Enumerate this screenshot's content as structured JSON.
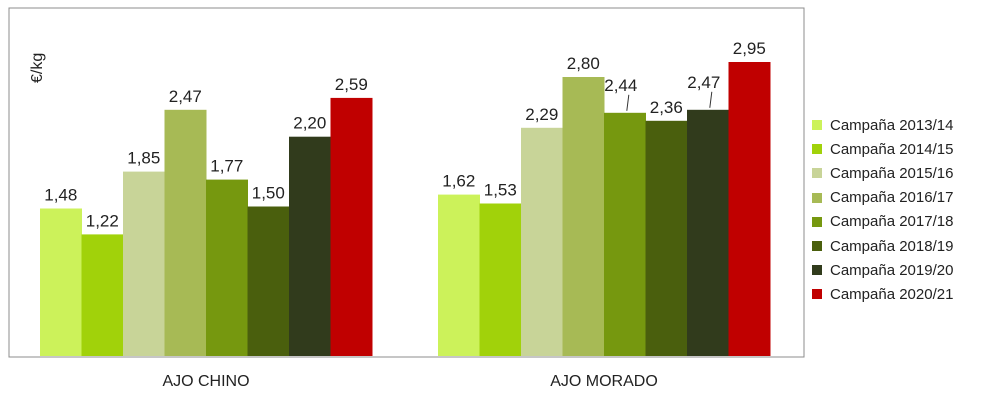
{
  "chart_data": {
    "type": "bar",
    "ylabel": "€/kg",
    "categories": [
      "AJO CHINO",
      "AJO MORADO"
    ],
    "ylim": [
      0,
      3.3
    ],
    "grid": false,
    "legend_placement": "right",
    "series": [
      {
        "name": "Campaña 2013/14",
        "color": "#ccf25a",
        "values": [
          1.48,
          1.62
        ],
        "labels": [
          "1,48",
          "1,62"
        ]
      },
      {
        "name": "Campaña 2014/15",
        "color": "#a1d20a",
        "values": [
          1.22,
          1.53
        ],
        "labels": [
          "1,22",
          "1,53"
        ]
      },
      {
        "name": "Campaña 2015/16",
        "color": "#c8d498",
        "values": [
          1.85,
          2.29
        ],
        "labels": [
          "1,85",
          "2,29"
        ]
      },
      {
        "name": "Campaña 2016/17",
        "color": "#a7ba55",
        "values": [
          2.47,
          2.8
        ],
        "labels": [
          "2,47",
          "2,80"
        ]
      },
      {
        "name": "Campaña 2017/18",
        "color": "#76980f",
        "values": [
          1.77,
          2.44
        ],
        "labels": [
          "1,77",
          "2,44"
        ]
      },
      {
        "name": "Campaña 2018/19",
        "color": "#4a5f0d",
        "values": [
          1.5,
          2.36
        ],
        "labels": [
          "1,50",
          "2,36"
        ]
      },
      {
        "name": "Campaña 2019/20",
        "color": "#313b1c",
        "values": [
          2.2,
          2.47
        ],
        "labels": [
          "2,20",
          "2,47"
        ]
      },
      {
        "name": "Campaña 2020/21",
        "color": "#c00000",
        "values": [
          2.59,
          2.95
        ],
        "labels": [
          "2,59",
          "2,95"
        ]
      }
    ]
  }
}
